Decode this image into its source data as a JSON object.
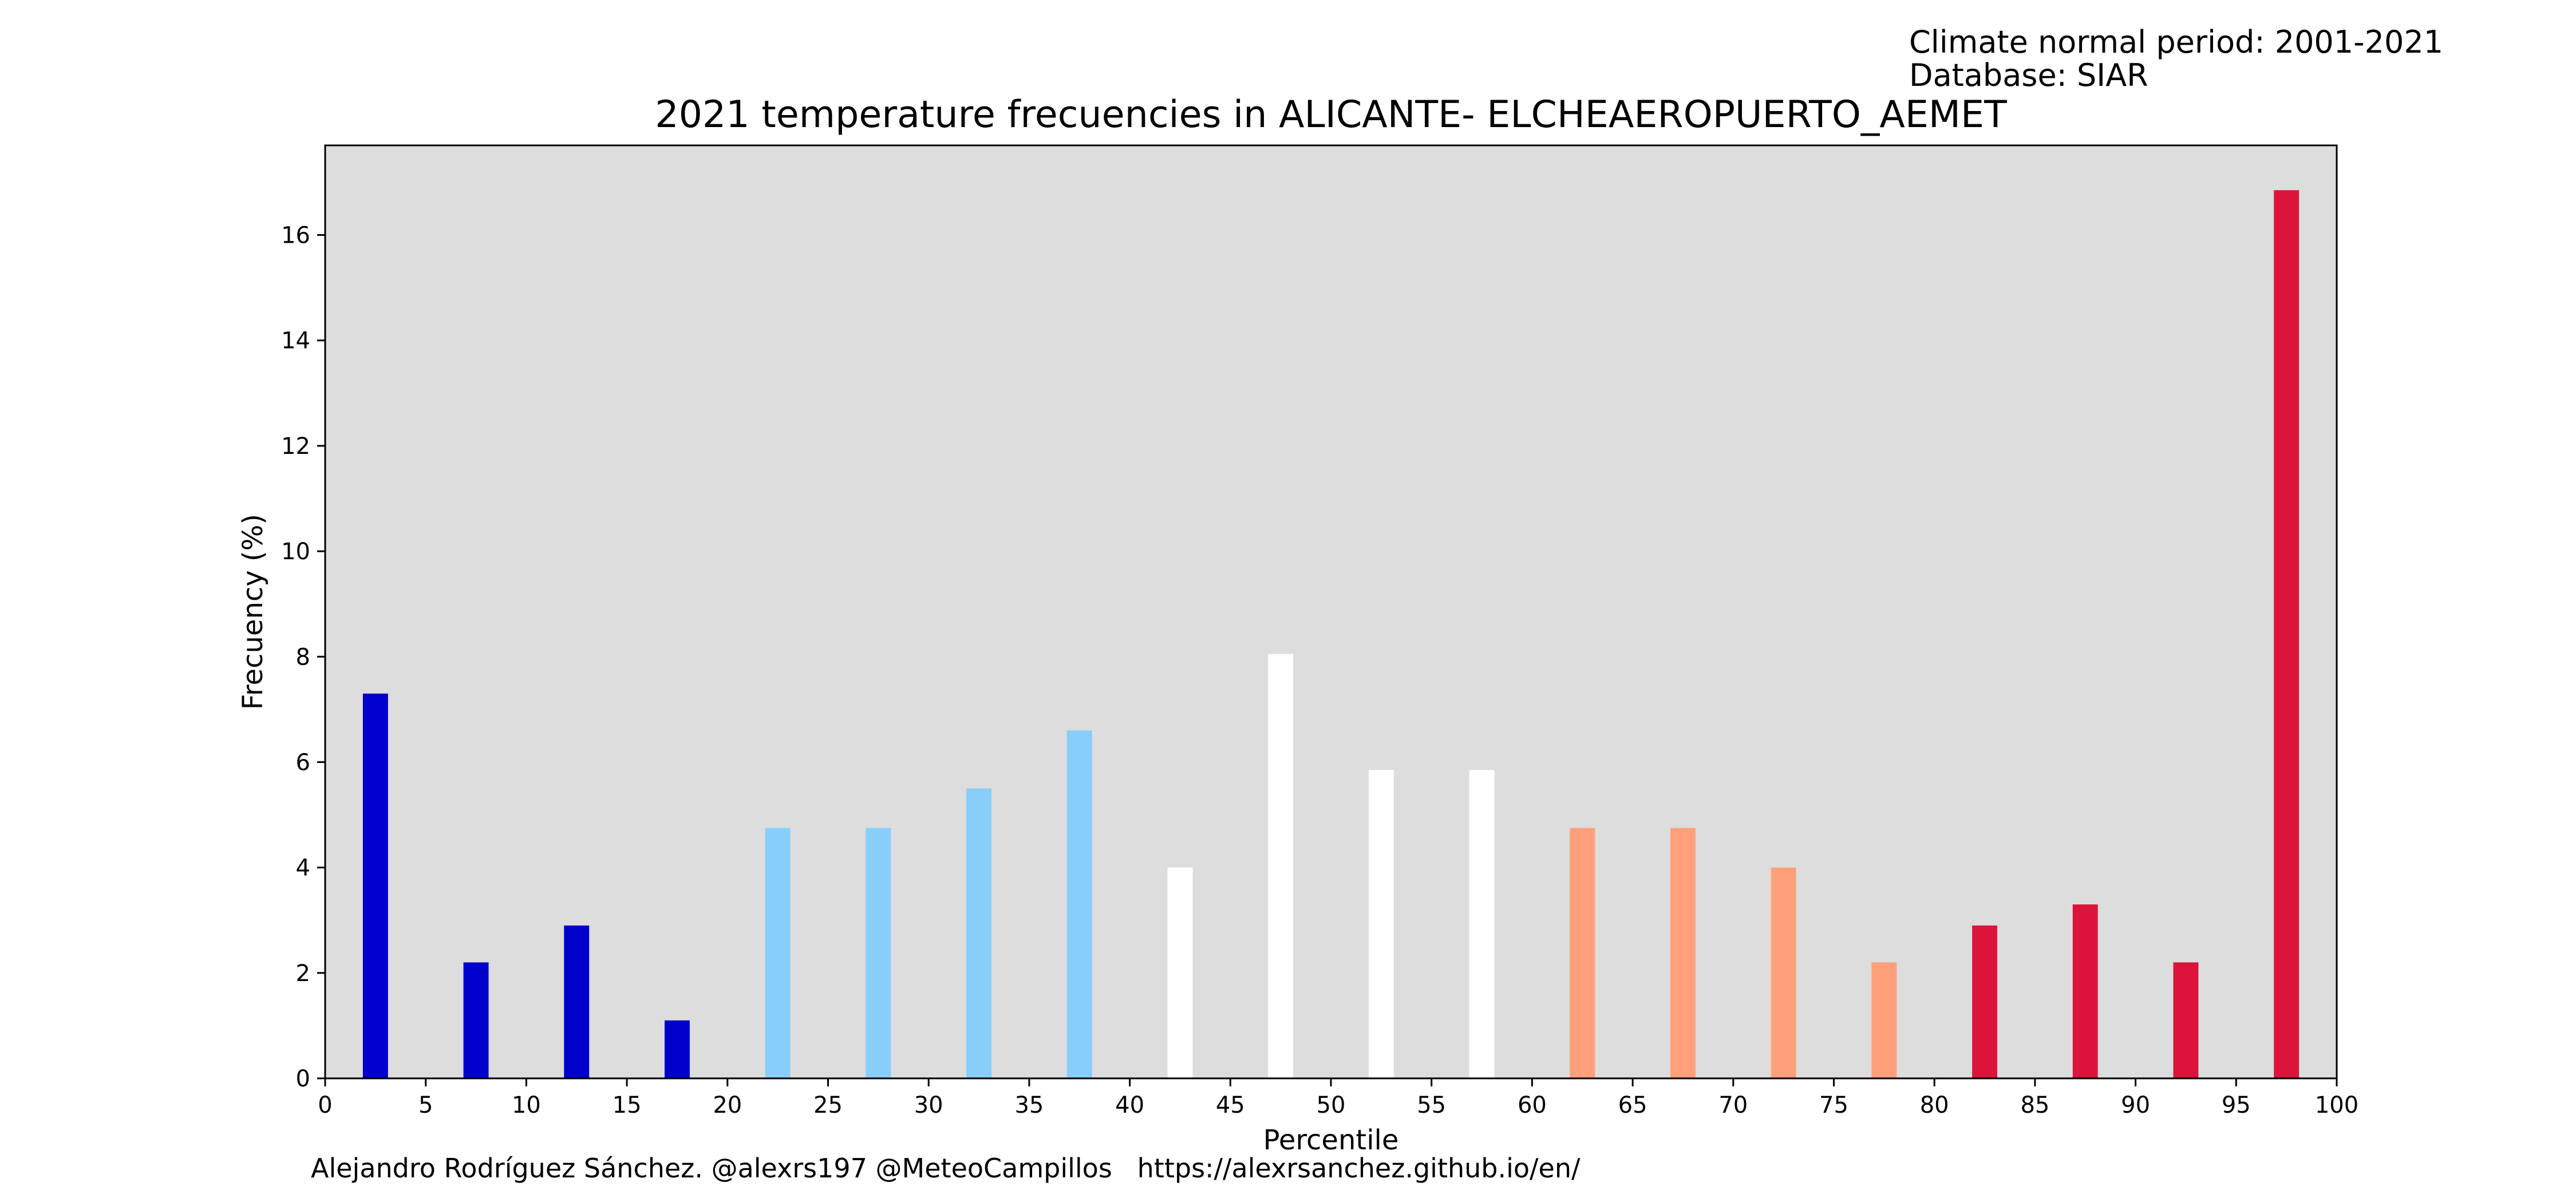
{
  "header": {
    "normal_period": "Climate normal period: 2001-2021",
    "database": "Database: SIAR"
  },
  "footer": {
    "credits": "Alejandro Rodríguez Sánchez. @alexrs197 @MeteoCampillos   https://alexrsanchez.github.io/en/"
  },
  "colors": {
    "plot_background": "#dddddd",
    "cold_extreme": "#0000cd",
    "cold": "#87cefa",
    "normal": "#ffffff",
    "warm": "#ffa07a",
    "warm_extreme": "#dc143c"
  },
  "chart_data": {
    "type": "bar",
    "title": "2021 temperature frecuencies in ALICANTE- ELCHEAEROPUERTO_AEMET",
    "xlabel": "Percentile",
    "ylabel": "Frecuency (%)",
    "xlim": [
      0,
      100
    ],
    "ylim": [
      0,
      17.7
    ],
    "xticks": [
      0,
      5,
      10,
      15,
      20,
      25,
      30,
      35,
      40,
      45,
      50,
      55,
      60,
      65,
      70,
      75,
      80,
      85,
      90,
      95,
      100
    ],
    "yticks": [
      0,
      2,
      4,
      6,
      8,
      10,
      12,
      14,
      16
    ],
    "bar_width": 1.25,
    "x": [
      2.5,
      7.5,
      12.5,
      17.5,
      22.5,
      27.5,
      32.5,
      37.5,
      42.5,
      47.5,
      52.5,
      57.5,
      62.5,
      67.5,
      72.5,
      77.5,
      82.5,
      87.5,
      92.5,
      97.5
    ],
    "values": [
      7.3,
      2.2,
      2.9,
      1.1,
      4.75,
      4.75,
      5.5,
      6.6,
      4.0,
      8.05,
      5.85,
      5.85,
      4.75,
      4.75,
      4.0,
      2.2,
      2.9,
      3.3,
      2.2,
      16.85
    ],
    "bar_colors": [
      "#0000cd",
      "#0000cd",
      "#0000cd",
      "#0000cd",
      "#87cefa",
      "#87cefa",
      "#87cefa",
      "#87cefa",
      "#ffffff",
      "#ffffff",
      "#ffffff",
      "#ffffff",
      "#ffa07a",
      "#ffa07a",
      "#ffa07a",
      "#ffa07a",
      "#dc143c",
      "#dc143c",
      "#dc143c",
      "#dc143c"
    ],
    "grid": false,
    "legend": "none"
  }
}
